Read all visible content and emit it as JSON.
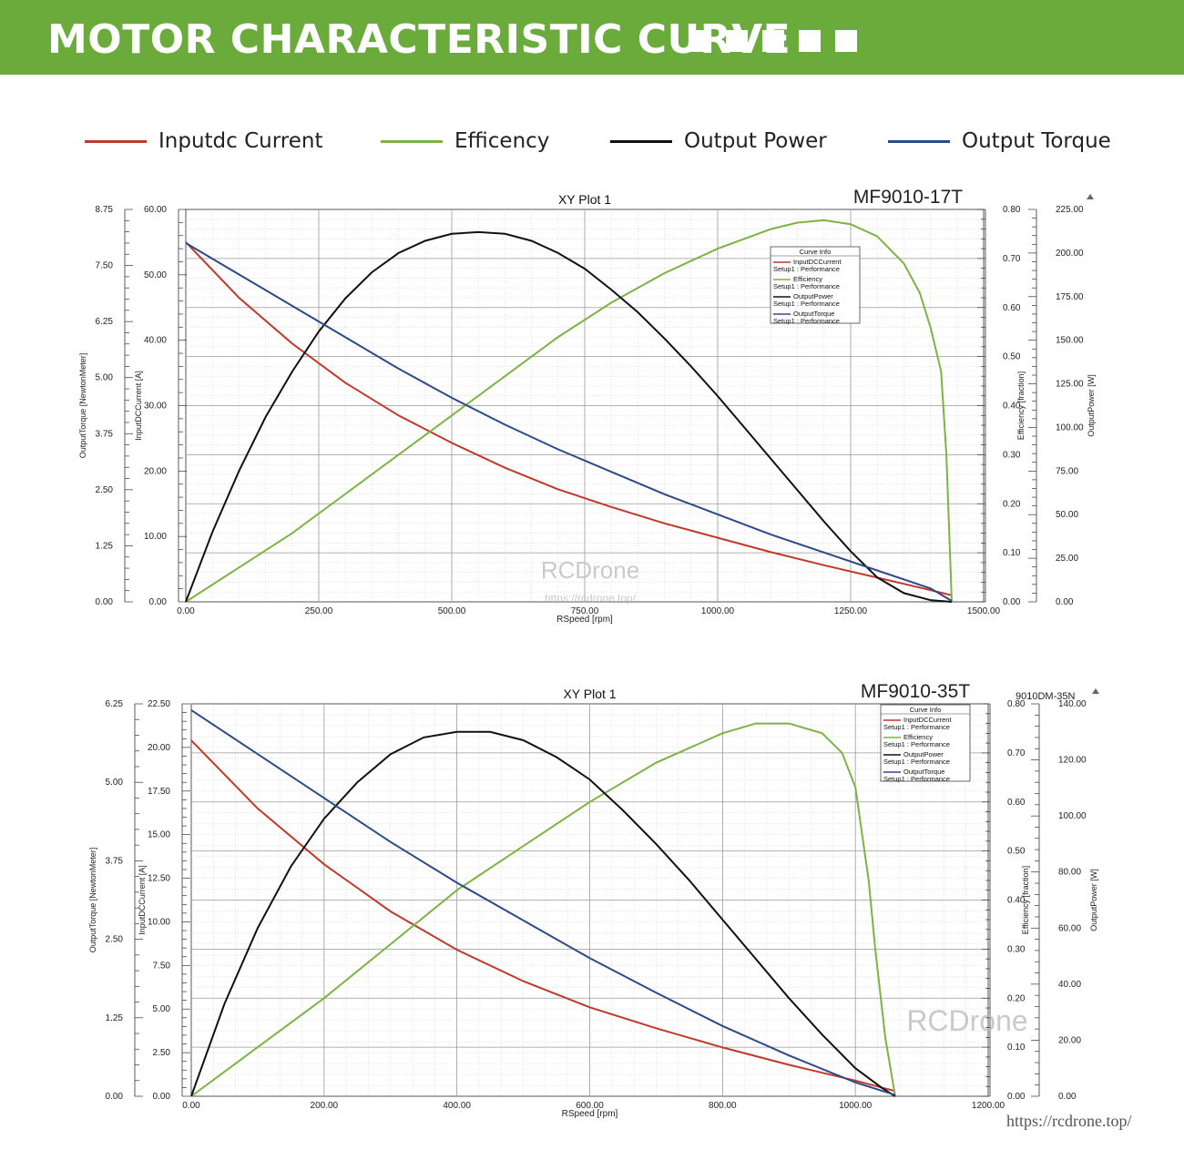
{
  "header": {
    "title": "MOTOR CHARACTERISTIC CURVE",
    "bg_color": "#6aab3b",
    "squares": 5
  },
  "legend": [
    {
      "label": "Inputdc Current",
      "color": "#c0392b"
    },
    {
      "label": "Efficency",
      "color": "#7cb342"
    },
    {
      "label": "Output Power",
      "color": "#111111"
    },
    {
      "label": "Output Torque",
      "color": "#2c4a8a"
    }
  ],
  "watermark": {
    "text": "RCDrone",
    "url": "https://rcdrone.top/"
  },
  "footer_url": "https://rcdrone.top/",
  "chart_data": [
    {
      "type": "line",
      "title": "XY Plot 1",
      "model_label": "MF9010-17T",
      "corner_label": "",
      "xlabel": "RSpeed [rpm]",
      "xlim": [
        0,
        1500
      ],
      "xticks": [
        "0.00",
        "250.00",
        "500.00",
        "750.00",
        "1000.00",
        "1250.00",
        "1500.00"
      ],
      "axes": {
        "torque": {
          "label": "OutputTorque [NewtonMeter]",
          "range": [
            0,
            8.75
          ],
          "ticks": [
            "0.00",
            "1.25",
            "2.50",
            "3.75",
            "5.00",
            "6.25",
            "7.50",
            "8.75"
          ]
        },
        "current": {
          "label": "InputDCCurrent [A]",
          "range": [
            0,
            60
          ],
          "ticks": [
            "0.00",
            "10.00",
            "20.00",
            "30.00",
            "40.00",
            "50.00",
            "60.00"
          ]
        },
        "efficiency": {
          "label": "Efficiency [fraction]",
          "range": [
            0,
            0.8
          ],
          "ticks": [
            "0.00",
            "0.10",
            "0.20",
            "0.30",
            "0.40",
            "0.50",
            "0.60",
            "0.70",
            "0.80"
          ]
        },
        "power": {
          "label": "OutputPower [W]",
          "range": [
            0,
            225
          ],
          "ticks": [
            "0.00",
            "25.00",
            "50.00",
            "75.00",
            "100.00",
            "125.00",
            "150.00",
            "175.00",
            "200.00",
            "225.00"
          ]
        }
      },
      "curve_info": {
        "title": "Curve Info",
        "entries": [
          {
            "name": "InputDCCurrent",
            "sub": "Setup1 : Performance",
            "color": "#c0392b"
          },
          {
            "name": "Efficiency",
            "sub": "Setup1 : Performance",
            "color": "#7cb342"
          },
          {
            "name": "OutputPower",
            "sub": "Setup1 : Performance",
            "color": "#111111"
          },
          {
            "name": "OutputTorque",
            "sub": "Setup1 : Performance",
            "color": "#2c4a8a"
          }
        ]
      },
      "series": [
        {
          "name": "InputDCCurrent",
          "axis": "current",
          "color": "#c0392b",
          "x": [
            0,
            100,
            200,
            300,
            400,
            500,
            600,
            700,
            800,
            900,
            1000,
            1100,
            1200,
            1300,
            1400,
            1440
          ],
          "y": [
            55,
            46.5,
            39.5,
            33.5,
            28.5,
            24.3,
            20.5,
            17.2,
            14.5,
            12,
            9.8,
            7.6,
            5.6,
            3.7,
            1.8,
            1.0
          ]
        },
        {
          "name": "Efficiency",
          "axis": "efficiency",
          "color": "#7cb342",
          "x": [
            0,
            100,
            200,
            300,
            400,
            500,
            600,
            700,
            800,
            900,
            1000,
            1100,
            1150,
            1200,
            1250,
            1300,
            1350,
            1380,
            1400,
            1420,
            1430,
            1440
          ],
          "y": [
            0,
            0.07,
            0.14,
            0.22,
            0.3,
            0.38,
            0.46,
            0.54,
            0.61,
            0.67,
            0.72,
            0.76,
            0.773,
            0.778,
            0.77,
            0.745,
            0.69,
            0.63,
            0.56,
            0.47,
            0.3,
            0
          ]
        },
        {
          "name": "OutputPower",
          "axis": "power",
          "color": "#111111",
          "x": [
            0,
            50,
            100,
            150,
            200,
            250,
            300,
            350,
            400,
            450,
            500,
            550,
            600,
            650,
            700,
            750,
            800,
            850,
            900,
            950,
            1000,
            1050,
            1100,
            1150,
            1200,
            1250,
            1300,
            1350,
            1400,
            1440
          ],
          "y": [
            0,
            40,
            75,
            106,
            132,
            155,
            174,
            189,
            200,
            207,
            211,
            212,
            211,
            207,
            200,
            191,
            179,
            166,
            151,
            135,
            118,
            100,
            82,
            64,
            46,
            29,
            14,
            5,
            1,
            0
          ]
        },
        {
          "name": "OutputTorque",
          "axis": "torque",
          "color": "#2c4a8a",
          "x": [
            0,
            100,
            200,
            300,
            400,
            500,
            600,
            700,
            800,
            900,
            1000,
            1100,
            1200,
            1300,
            1400,
            1440
          ],
          "y": [
            8.0,
            7.3,
            6.6,
            5.9,
            5.2,
            4.55,
            3.95,
            3.4,
            2.9,
            2.4,
            1.95,
            1.5,
            1.1,
            0.7,
            0.3,
            0.02
          ]
        }
      ]
    },
    {
      "type": "line",
      "title": "XY Plot 1",
      "model_label": "MF9010-35T",
      "corner_label": "9010DM-35N",
      "xlabel": "RSpeed [rpm]",
      "xlim": [
        0,
        1200
      ],
      "xticks": [
        "0.00",
        "200.00",
        "400.00",
        "600.00",
        "800.00",
        "1000.00",
        "1200.00"
      ],
      "axes": {
        "torque": {
          "label": "OutputTorque [NewtonMeter]",
          "range": [
            0,
            6.25
          ],
          "ticks": [
            "0.00",
            "1.25",
            "2.50",
            "3.75",
            "5.00",
            "6.25"
          ]
        },
        "current": {
          "label": "InputDCCurrent [A]",
          "range": [
            0,
            22.5
          ],
          "ticks": [
            "0.00",
            "2.50",
            "5.00",
            "7.50",
            "10.00",
            "12.50",
            "15.00",
            "17.50",
            "20.00",
            "22.50"
          ]
        },
        "efficiency": {
          "label": "Efficiency [fraction]",
          "range": [
            0,
            0.8
          ],
          "ticks": [
            "0.00",
            "0.10",
            "0.20",
            "0.30",
            "0.40",
            "0.50",
            "0.60",
            "0.70",
            "0.80"
          ]
        },
        "power": {
          "label": "OutputPower [W]",
          "range": [
            0,
            140
          ],
          "ticks": [
            "0.00",
            "20.00",
            "40.00",
            "60.00",
            "80.00",
            "100.00",
            "120.00",
            "140.00"
          ]
        }
      },
      "curve_info": {
        "title": "Curve Info",
        "entries": [
          {
            "name": "InputDCCurrent",
            "sub": "Setup1 : Performance",
            "color": "#c0392b"
          },
          {
            "name": "Efficiency",
            "sub": "Setup1 : Performance",
            "color": "#7cb342"
          },
          {
            "name": "OutputPower",
            "sub": "Setup1 : Performance",
            "color": "#111111"
          },
          {
            "name": "OutputTorque",
            "sub": "Setup1 : Performance",
            "color": "#2c4a8a"
          }
        ]
      },
      "series": [
        {
          "name": "InputDCCurrent",
          "axis": "current",
          "color": "#c0392b",
          "x": [
            0,
            100,
            200,
            300,
            400,
            500,
            600,
            700,
            800,
            900,
            1000,
            1060
          ],
          "y": [
            20.4,
            16.5,
            13.3,
            10.6,
            8.4,
            6.6,
            5.1,
            3.9,
            2.8,
            1.8,
            0.9,
            0.3
          ]
        },
        {
          "name": "Efficiency",
          "axis": "efficiency",
          "color": "#7cb342",
          "x": [
            0,
            100,
            200,
            300,
            400,
            500,
            600,
            700,
            800,
            850,
            900,
            950,
            980,
            1000,
            1020,
            1030,
            1045,
            1060
          ],
          "y": [
            0,
            0.1,
            0.2,
            0.31,
            0.42,
            0.51,
            0.6,
            0.68,
            0.74,
            0.76,
            0.76,
            0.74,
            0.7,
            0.63,
            0.44,
            0.3,
            0.12,
            0
          ]
        },
        {
          "name": "OutputPower",
          "axis": "power",
          "color": "#111111",
          "x": [
            0,
            50,
            100,
            150,
            200,
            250,
            300,
            350,
            400,
            450,
            500,
            550,
            600,
            650,
            700,
            750,
            800,
            850,
            900,
            950,
            1000,
            1040,
            1060
          ],
          "y": [
            0,
            33,
            60,
            82,
            99,
            112,
            122,
            128,
            130,
            130,
            127,
            121,
            113,
            102,
            90,
            77,
            63,
            49,
            35,
            22,
            10,
            3,
            0
          ]
        },
        {
          "name": "OutputTorque",
          "axis": "torque",
          "color": "#2c4a8a",
          "x": [
            0,
            100,
            200,
            300,
            400,
            500,
            600,
            700,
            800,
            900,
            1000,
            1060
          ],
          "y": [
            6.15,
            5.45,
            4.75,
            4.05,
            3.4,
            2.8,
            2.2,
            1.65,
            1.12,
            0.65,
            0.22,
            0.02
          ]
        }
      ]
    }
  ]
}
